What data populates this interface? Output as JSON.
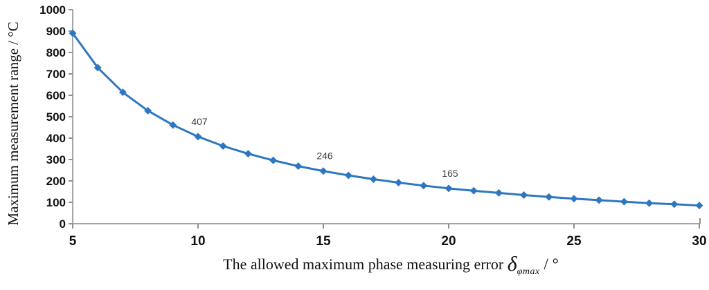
{
  "chart_data": {
    "type": "line",
    "title": "",
    "xlabel_parts": {
      "prefix": "The allowed maximum phase measuring error ",
      "delta": "δ",
      "delta_subscript": "φmax",
      "suffix": " / °"
    },
    "ylabel": "Maximum measurement range / °C",
    "xlim": [
      5,
      30
    ],
    "ylim": [
      0,
      1000
    ],
    "x_ticks": [
      5,
      10,
      15,
      20,
      25,
      30
    ],
    "y_ticks": [
      0,
      100,
      200,
      300,
      400,
      500,
      600,
      700,
      800,
      900,
      1000
    ],
    "grid": "off",
    "legend": "none",
    "series": [
      {
        "name": "maximum-measurement-range",
        "x": [
          5,
          6,
          7,
          8,
          9,
          10,
          11,
          12,
          13,
          14,
          15,
          16,
          17,
          18,
          19,
          20,
          21,
          22,
          23,
          24,
          25,
          26,
          27,
          28,
          29,
          30
        ],
        "values": [
          890,
          729,
          614,
          528,
          461,
          407,
          363,
          327,
          296,
          269,
          246,
          226,
          208,
          192,
          178,
          165,
          154,
          144,
          134,
          125,
          117,
          110,
          103,
          96,
          91,
          85
        ],
        "marker": "diamond"
      }
    ],
    "point_labels": [
      {
        "x": 10,
        "text": "407"
      },
      {
        "x": 15,
        "text": "246"
      },
      {
        "x": 20,
        "text": "165"
      }
    ],
    "colors": {
      "line": "#2e77c0",
      "marker": "#2e77c0",
      "axis": "#a6a6a6",
      "tick": "#8e8e8e",
      "tick_text": "#111111",
      "point_label_text": "#3d3d3d"
    }
  }
}
